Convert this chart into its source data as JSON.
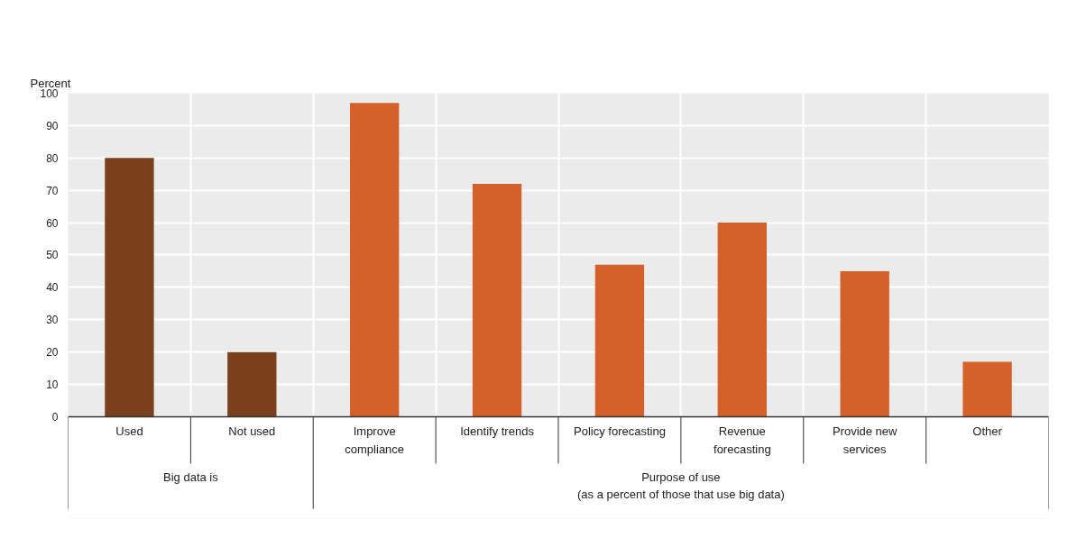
{
  "chart_data": {
    "type": "bar",
    "ylabel": "Percent",
    "categories": [
      "Used",
      "Not used",
      "Improve\ncompliance",
      "Identify trends",
      "Policy forecasting",
      "Revenue\nforecasting",
      "Provide new\nservices",
      "Other"
    ],
    "values": [
      80,
      20,
      97,
      72,
      47,
      60,
      45,
      17
    ],
    "colors": [
      "#7a401e",
      "#7a401e",
      "#d4602a",
      "#d4602a",
      "#d4602a",
      "#d4602a",
      "#d4602a",
      "#d4602a"
    ],
    "ylim": [
      0,
      100
    ],
    "yticks": [
      0,
      10,
      20,
      30,
      40,
      50,
      60,
      70,
      80,
      90,
      100
    ],
    "grid": true,
    "annotations": [
      "Big data is",
      "Purpose of use\n(as a percent of those that use big data)"
    ]
  }
}
